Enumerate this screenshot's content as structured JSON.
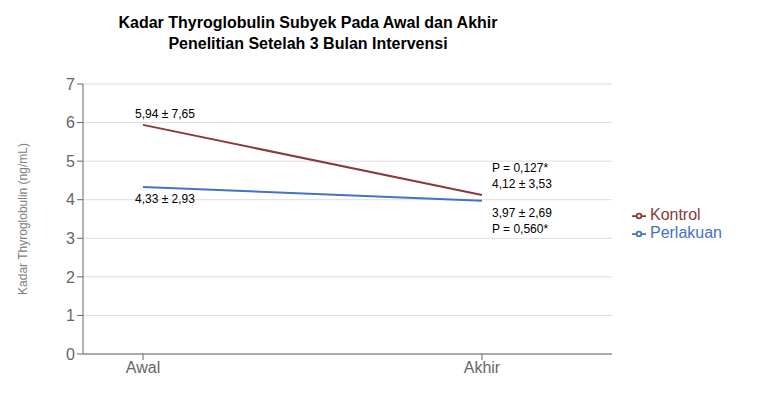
{
  "chart_data": {
    "type": "line",
    "title": "Kadar Thyroglobulin Subyek Pada Awal dan Akhir",
    "subtitle": "Penelitian Setelah 3 Bulan Intervensi",
    "categories": [
      "Awal",
      "Akhir"
    ],
    "y_label": "Kadar Thyroglobulin (ng/mL)",
    "ylim": [
      0,
      7
    ],
    "yticks": [
      0,
      1,
      2,
      3,
      4,
      5,
      6,
      7
    ],
    "grid": true,
    "legend": "right",
    "marker": "none",
    "series": [
      {
        "name": "Perlakuan",
        "color": "#4472C4",
        "values": [
          4.33,
          3.97
        ],
        "value_labels": [
          "4,33 ± 2,93",
          "3,97 ± 2,69"
        ]
      },
      {
        "name": "Kontrol",
        "color": "#8B3A3A",
        "values": [
          5.94,
          4.12
        ],
        "value_labels": [
          "5,94 ± 7,65",
          "4,12 ± 3,53"
        ]
      }
    ],
    "annotations": [
      {
        "text": "P = 0,560*",
        "series": "Perlakuan"
      },
      {
        "text": "P = 0,127*",
        "series": "Kontrol"
      }
    ]
  }
}
